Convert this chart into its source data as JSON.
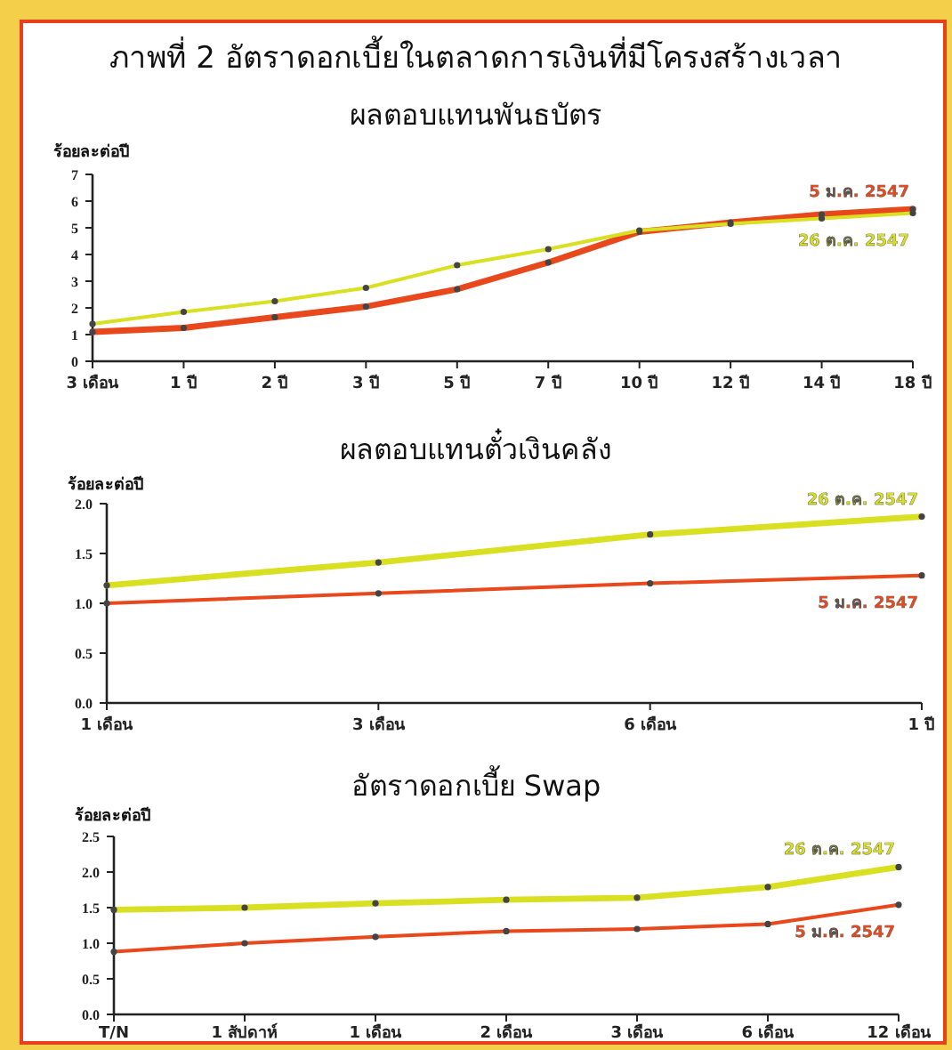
{
  "chart_data": [
    {
      "type": "line",
      "title": "ภาพที่ 2 อัตราดอกเบี้ยในตลาดการเงินที่มีโครงสร้างเวลา",
      "subtitle": "ผลตอบแทนพันธบัตร",
      "ylabel": "ร้อยละต่อปี",
      "categories": [
        "3 เดือน",
        "1 ปี",
        "2 ปี",
        "3 ปี",
        "5 ปี",
        "7 ปี",
        "10 ปี",
        "12 ปี",
        "14 ปี",
        "18 ปี"
      ],
      "series": [
        {
          "name": "5 ม.ค. 2547",
          "color": "#e8481c",
          "values": [
            1.1,
            1.25,
            1.65,
            2.05,
            2.7,
            3.7,
            4.85,
            5.2,
            5.5,
            5.7
          ]
        },
        {
          "name": "26 ต.ค. 2547",
          "color": "#d9e021",
          "values": [
            1.4,
            1.85,
            2.25,
            2.75,
            3.6,
            4.2,
            4.9,
            5.15,
            5.35,
            5.55
          ]
        }
      ],
      "ylim": [
        0,
        7
      ],
      "yticks": [
        0,
        1,
        2,
        3,
        4,
        5,
        6,
        7
      ],
      "grid": false,
      "marker": "circle",
      "line_style": "solid"
    },
    {
      "type": "line",
      "title": "ผลตอบแทนตั๋วเงินคลัง",
      "ylabel": "ร้อยละต่อปี",
      "categories": [
        "1 เดือน",
        "3 เดือน",
        "6 เดือน",
        "1 ปี"
      ],
      "series": [
        {
          "name": "26 ต.ค. 2547",
          "color": "#d9e021",
          "values": [
            1.18,
            1.41,
            1.69,
            1.87
          ]
        },
        {
          "name": "5 ม.ค. 2547",
          "color": "#e8481c",
          "values": [
            1.0,
            1.1,
            1.2,
            1.28
          ]
        }
      ],
      "ylim": [
        0,
        2
      ],
      "yticks": [
        {
          "value": 0,
          "label": "0.0"
        },
        {
          "value": 0.5,
          "label": "0.5"
        },
        {
          "value": 1,
          "label": "1.0"
        },
        {
          "value": 1.5,
          "label": "1.5"
        },
        {
          "value": 2,
          "label": "2.0"
        }
      ],
      "grid": false,
      "marker": "circle",
      "line_style": "solid"
    },
    {
      "type": "line",
      "title": "อัตราดอกเบี้ย Swap",
      "ylabel": "ร้อยละต่อปี",
      "categories": [
        "T/N",
        "1 สัปดาห์",
        "1 เดือน",
        "2 เดือน",
        "3 เดือน",
        "6 เดือน",
        "12 เดือน"
      ],
      "series": [
        {
          "name": "26 ต.ค. 2547",
          "color": "#d9e021",
          "values": [
            1.47,
            1.5,
            1.56,
            1.61,
            1.64,
            1.79,
            2.07
          ]
        },
        {
          "name": "5 ม.ค. 2547",
          "color": "#e8481c",
          "values": [
            0.88,
            1.0,
            1.09,
            1.17,
            1.2,
            1.27,
            1.54
          ]
        }
      ],
      "ylim": [
        0,
        2.5
      ],
      "yticks": [
        {
          "value": 0,
          "label": "0.0"
        },
        {
          "value": 0.5,
          "label": "0.5"
        },
        {
          "value": 1,
          "label": "1.0"
        },
        {
          "value": 1.5,
          "label": "1.5"
        },
        {
          "value": 2,
          "label": "2.0"
        },
        {
          "value": 2.5,
          "label": "2.5"
        }
      ],
      "grid": false,
      "marker": "circle",
      "line_style": "solid"
    }
  ]
}
